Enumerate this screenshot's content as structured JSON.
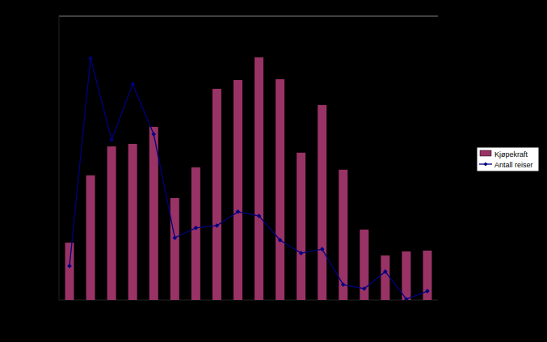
{
  "chart_data": {
    "type": "bar",
    "tick_labels": false,
    "legend": "right",
    "categories": [
      null,
      null,
      null,
      null,
      null,
      null,
      null,
      null,
      null,
      null,
      null,
      null,
      null,
      null,
      null,
      null,
      null,
      null
    ],
    "ylim": [
      0,
      100
    ],
    "series": [
      {
        "name": "Kjøpekraft",
        "type": "bar",
        "color": "#993366",
        "values": [
          20.2,
          43.9,
          54.1,
          55.0,
          61.0,
          35.9,
          46.7,
          74.4,
          77.5,
          85.5,
          77.8,
          51.9,
          68.7,
          45.9,
          24.8,
          15.7,
          17.1,
          17.4
        ]
      },
      {
        "name": "Antall reiser",
        "type": "line",
        "color": "#000080",
        "marker": "diamond",
        "values": [
          12.0,
          85.2,
          56.4,
          76.1,
          58.4,
          21.9,
          25.4,
          26.2,
          31.1,
          29.6,
          21.1,
          16.5,
          17.9,
          5.4,
          4.0,
          10.0,
          0.3,
          3.1
        ]
      }
    ]
  }
}
